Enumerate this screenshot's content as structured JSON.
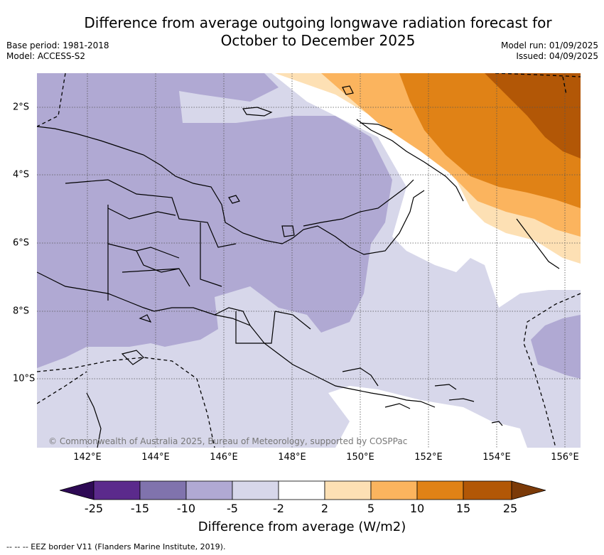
{
  "title_line1": "Difference from average outgoing longwave radiation forecast for",
  "title_line2": "October to December 2025",
  "base_period": "Base period: 1981-2018",
  "model": "Model: ACCESS-S2",
  "model_run": "Model run: 01/09/2025",
  "issued": "Issued: 04/09/2025",
  "copyright": "© Commonwealth of Australia 2025, Bureau of Meteorology, supported by COSPPac",
  "x_ticks": [
    "142°E",
    "144°E",
    "146°E",
    "148°E",
    "150°E",
    "152°E",
    "154°E",
    "156°E"
  ],
  "y_ticks": [
    "2°S",
    "4°S",
    "6°S",
    "8°S",
    "10°S"
  ],
  "colorbar": {
    "labels": [
      "-25",
      "-15",
      "-10",
      "-5",
      "-2",
      "2",
      "5",
      "10",
      "15",
      "25"
    ],
    "colors": [
      "#2e0a55",
      "#5b2a8c",
      "#8073ad",
      "#b0a9d3",
      "#d7d7ea",
      "#ffffff",
      "#fde0b4",
      "#fbb45e",
      "#e08216",
      "#b25706",
      "#7b3a08"
    ],
    "title": "Difference from average (W/m2)"
  },
  "footnote": "-- -- -- EEZ border V11 (Flanders Marine Institute, 2019)."
}
